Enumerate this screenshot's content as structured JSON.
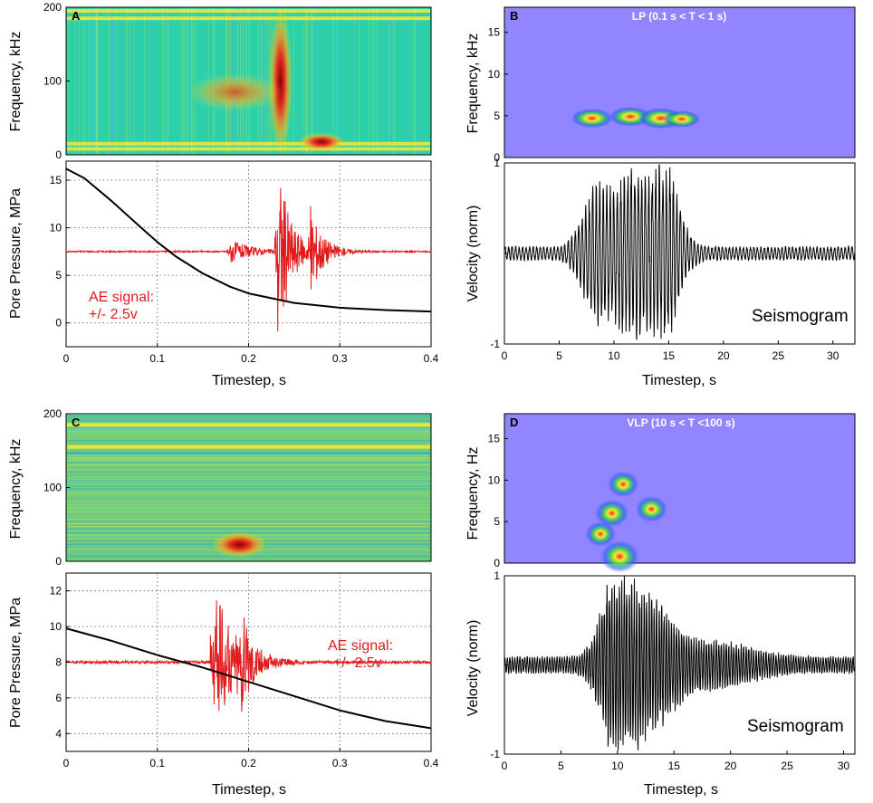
{
  "chart_data": [
    {
      "panel": "A",
      "type": "heatmap",
      "kind": "spectrogram",
      "ylabel": "Frequency, kHz",
      "yticks": [
        0,
        100,
        200
      ],
      "ylim": [
        0,
        200
      ],
      "xlim": [
        0,
        0.4
      ],
      "palette": "jet",
      "background_color": "#2dd1a8",
      "hot_spots": [
        {
          "t_start": 0.228,
          "t_end": 0.242,
          "f_low": 0,
          "f_high": 200,
          "intensity": "high"
        },
        {
          "t_start": 0.14,
          "t_end": 0.23,
          "f_low": 60,
          "f_high": 110,
          "intensity": "medium"
        },
        {
          "t_start": 0.26,
          "t_end": 0.3,
          "f_low": 5,
          "f_high": 30,
          "intensity": "high"
        }
      ],
      "bands_khz": [
        8,
        15,
        185,
        195
      ]
    },
    {
      "panel": "A-lower",
      "type": "line",
      "ylabel": "Pore Pressure, MPa",
      "xlabel": "Timestep, s",
      "xticks": [
        0,
        0.1,
        0.2,
        0.3,
        0.4
      ],
      "xtick_labels": [
        "0",
        "0.1",
        "0.2",
        "0.3",
        "0.4"
      ],
      "yticks": [
        0,
        5,
        10,
        15
      ],
      "xlim": [
        0,
        0.4
      ],
      "ylim": [
        -2.5,
        17
      ],
      "grid": true,
      "series": [
        {
          "name": "Pore pressure",
          "color": "#000000",
          "x": [
            0,
            0.02,
            0.05,
            0.08,
            0.1,
            0.12,
            0.15,
            0.18,
            0.2,
            0.25,
            0.3,
            0.35,
            0.4
          ],
          "y": [
            16.2,
            15.2,
            12.8,
            10.2,
            8.5,
            7.0,
            5.2,
            3.8,
            3.1,
            2.1,
            1.6,
            1.35,
            1.2
          ]
        },
        {
          "name": "AE signal",
          "color": "#e31a1c",
          "baseline": 7.5,
          "bursts": [
            {
              "t": 0.232,
              "amp": 10,
              "dur": 0.03
            },
            {
              "t": 0.268,
              "amp": 4,
              "dur": 0.03
            },
            {
              "t": 0.18,
              "amp": 1.2,
              "dur": 0.05
            }
          ]
        }
      ],
      "annotation": {
        "line1": "AE signal:",
        "line2": "+/- 2.5v",
        "t": 0.015,
        "p": 3.5
      }
    },
    {
      "panel": "B",
      "type": "heatmap",
      "kind": "spectrogram",
      "title": "LP (0.1 s < T < 1 s)",
      "ylabel": "Frequency, kHz",
      "yticks": [
        0,
        5,
        10,
        15
      ],
      "ylim": [
        0,
        18
      ],
      "xlim": [
        0,
        32
      ],
      "background_color": "#9186ff",
      "hot_spots": [
        {
          "t": 8,
          "f": 4.7,
          "strength": 0.8
        },
        {
          "t": 11.5,
          "f": 4.9,
          "strength": 0.85
        },
        {
          "t": 14.3,
          "f": 4.7,
          "strength": 1.0
        },
        {
          "t": 16.2,
          "f": 4.6,
          "strength": 0.55
        }
      ]
    },
    {
      "panel": "B-lower",
      "type": "line",
      "ylabel": "Velocity (norm)",
      "xlabel": "Timestep, s",
      "xticks": [
        0,
        5,
        10,
        15,
        20,
        25,
        30
      ],
      "yticks": [
        -1,
        0,
        1
      ],
      "ytick_labels": [
        "-1",
        "",
        "1"
      ],
      "xlim": [
        0,
        32
      ],
      "ylim": [
        -1,
        1
      ],
      "series": [
        {
          "name": "Seismogram",
          "color": "#000000",
          "envelope": [
            {
              "t": 8.5,
              "amp": 0.7,
              "w": 1.8
            },
            {
              "t": 11.5,
              "amp": 0.85,
              "w": 1.6
            },
            {
              "t": 14.5,
              "amp": 1.0,
              "w": 1.8
            }
          ],
          "noise": 0.08
        }
      ],
      "annotation": "Seismogram"
    },
    {
      "panel": "C",
      "type": "heatmap",
      "kind": "spectrogram",
      "ylabel": "Frequency, kHz",
      "yticks": [
        0,
        100,
        200
      ],
      "ylim": [
        0,
        200
      ],
      "xlim": [
        0,
        0.4
      ],
      "background_color": "#6ccd7e",
      "hot_spots": [
        {
          "t_start": 0.16,
          "t_end": 0.22,
          "f_low": 5,
          "f_high": 40,
          "intensity": "high"
        }
      ],
      "bands_khz": [
        155,
        185
      ]
    },
    {
      "panel": "C-lower",
      "type": "line",
      "ylabel": "Pore Pressure, MPa",
      "xlabel": "Timestep, s",
      "xticks": [
        0,
        0.1,
        0.2,
        0.3,
        0.4
      ],
      "xtick_labels": [
        "0",
        "0.1",
        "0.2",
        "0.3",
        "0.4"
      ],
      "yticks": [
        4,
        6,
        8,
        10,
        12
      ],
      "xlim": [
        0,
        0.4
      ],
      "ylim": [
        3,
        13
      ],
      "grid": true,
      "series": [
        {
          "name": "Pore pressure",
          "color": "#000000",
          "x": [
            0,
            0.05,
            0.1,
            0.15,
            0.2,
            0.25,
            0.3,
            0.35,
            0.4
          ],
          "y": [
            9.9,
            9.2,
            8.4,
            7.7,
            6.9,
            6.1,
            5.3,
            4.7,
            4.3
          ]
        },
        {
          "name": "AE signal",
          "color": "#e31a1c",
          "baseline": 8.0,
          "bursts": [
            {
              "t": 0.162,
              "amp": 4.8,
              "dur": 0.04
            },
            {
              "t": 0.19,
              "amp": 2.4,
              "dur": 0.03
            }
          ]
        }
      ],
      "annotation": {
        "line1": "AE signal:",
        "line2": "+/- 2.5v",
        "t": 0.285,
        "p": 10.3
      }
    },
    {
      "panel": "D",
      "type": "heatmap",
      "kind": "spectrogram",
      "title": "VLP (10 s < T <100 s)",
      "ylabel": "Frequency, Hz",
      "yticks": [
        0,
        5,
        10,
        15
      ],
      "ylim": [
        0,
        18
      ],
      "xlim": [
        0,
        31
      ],
      "background_color": "#9186ff",
      "hot_spots": [
        {
          "t": 10.2,
          "f": 0.8,
          "strength": 1.0
        },
        {
          "t": 9.5,
          "f": 6,
          "strength": 0.65
        },
        {
          "t": 13,
          "f": 6.5,
          "strength": 0.55
        },
        {
          "t": 10.5,
          "f": 9.5,
          "strength": 0.5
        },
        {
          "t": 8.5,
          "f": 3.5,
          "strength": 0.45
        }
      ]
    },
    {
      "panel": "D-lower",
      "type": "line",
      "ylabel": "Velocity (norm)",
      "xlabel": "Timestep, s",
      "xticks": [
        0,
        5,
        10,
        15,
        20,
        25,
        30
      ],
      "yticks": [
        -1,
        0,
        1
      ],
      "ytick_labels": [
        "-1",
        "",
        "1"
      ],
      "xlim": [
        0,
        31
      ],
      "ylim": [
        -1,
        1
      ],
      "series": [
        {
          "name": "Seismogram",
          "color": "#000000",
          "envelope": [
            {
              "t": 10,
              "amp": 1.0,
              "w": 1.8
            },
            {
              "t": 13,
              "amp": 0.6,
              "w": 2.5
            },
            {
              "t": 18,
              "amp": 0.2,
              "w": 5
            }
          ],
          "noise": 0.1
        }
      ],
      "annotation": "Seismogram"
    }
  ]
}
